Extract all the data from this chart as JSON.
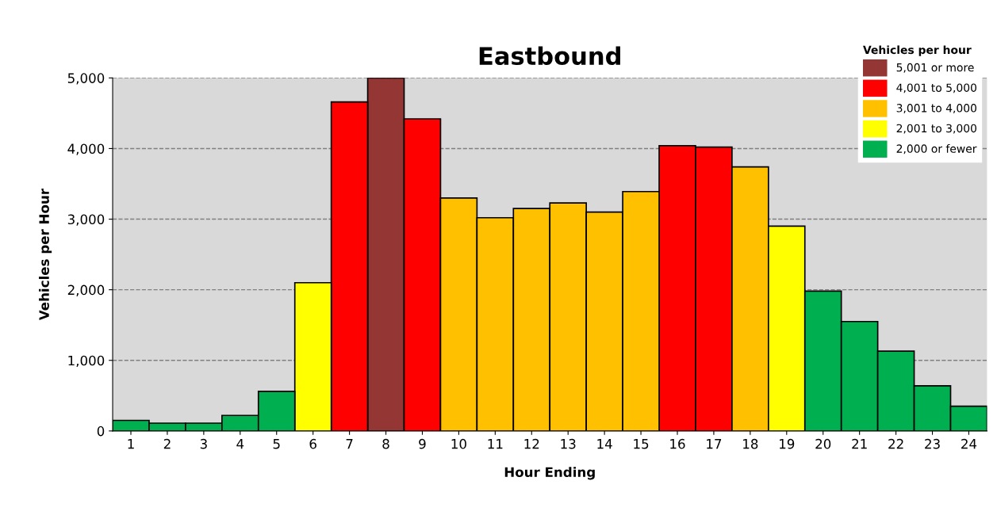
{
  "chart_data": {
    "type": "bar",
    "title": "Eastbound",
    "xlabel": "Hour Ending",
    "ylabel": "Vehicles per Hour",
    "legend_title": "Vehicles per hour",
    "categories": [
      "1",
      "2",
      "3",
      "4",
      "5",
      "6",
      "7",
      "8",
      "9",
      "10",
      "11",
      "12",
      "13",
      "14",
      "15",
      "16",
      "17",
      "18",
      "19",
      "20",
      "21",
      "22",
      "23",
      "24"
    ],
    "series": [
      {
        "name": "5,001 or more",
        "color": "#943634",
        "values": [
          null,
          null,
          null,
          null,
          null,
          null,
          null,
          5000,
          null,
          null,
          null,
          null,
          null,
          null,
          null,
          null,
          null,
          null,
          null,
          null,
          null,
          null,
          null,
          null
        ]
      },
      {
        "name": "4,001 to 5,000",
        "color": "#ff0000",
        "values": [
          null,
          null,
          null,
          null,
          null,
          null,
          4660,
          null,
          4420,
          null,
          null,
          null,
          null,
          null,
          null,
          4040,
          4020,
          null,
          null,
          null,
          null,
          null,
          null,
          null
        ]
      },
      {
        "name": "3,001 to 4,000",
        "color": "#ffc000",
        "values": [
          null,
          null,
          null,
          null,
          null,
          null,
          null,
          null,
          null,
          3300,
          3020,
          3150,
          3230,
          3100,
          3390,
          null,
          null,
          3740,
          null,
          null,
          null,
          null,
          null,
          null
        ]
      },
      {
        "name": "2,001 to 3,000",
        "color": "#ffff00",
        "values": [
          null,
          null,
          null,
          null,
          null,
          2100,
          null,
          null,
          null,
          null,
          null,
          null,
          null,
          null,
          null,
          null,
          null,
          null,
          2900,
          null,
          null,
          null,
          null,
          null
        ]
      },
      {
        "name": "2,000 or fewer",
        "color": "#00b050",
        "values": [
          150,
          110,
          110,
          220,
          560,
          null,
          null,
          null,
          null,
          null,
          null,
          null,
          null,
          null,
          null,
          null,
          null,
          null,
          null,
          1980,
          1550,
          1130,
          640,
          350
        ]
      }
    ],
    "ylim": [
      0,
      5000
    ],
    "yticks": [
      {
        "value": 0,
        "label": "0"
      },
      {
        "value": 1000,
        "label": "1,000"
      },
      {
        "value": 2000,
        "label": "2,000"
      },
      {
        "value": 3000,
        "label": "3,000"
      },
      {
        "value": 4000,
        "label": "4,000"
      },
      {
        "value": 5000,
        "label": "5,000"
      }
    ],
    "grid": "y",
    "line_style": "dashed",
    "legend": "top right"
  }
}
